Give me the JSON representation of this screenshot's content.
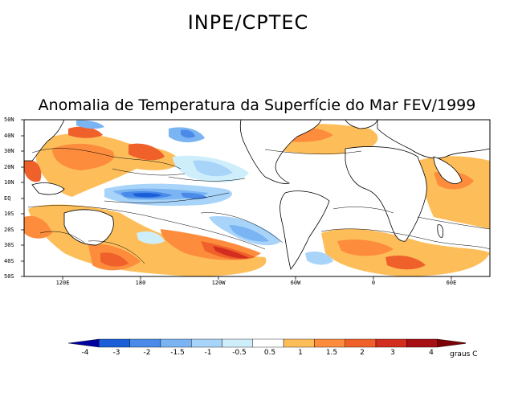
{
  "title": "INPE/CPTEC",
  "subtitle": "Anomalia de Temperatura da Superfície do Mar FEV/1999",
  "map": {
    "lat_labels": [
      "50N",
      "40N",
      "30N",
      "20N",
      "10N",
      "EQ",
      "10S",
      "20S",
      "30S",
      "40S",
      "50S"
    ],
    "lon_labels": [
      "120E",
      "180",
      "120W",
      "60W",
      "0",
      "60E"
    ]
  },
  "colorbar": {
    "labels": [
      "-4",
      "-3",
      "-2",
      "-1.5",
      "-1",
      "-0.5",
      "0.5",
      "1",
      "1.5",
      "2",
      "3",
      "4"
    ],
    "colors": [
      "#0000a0",
      "#1a5fd8",
      "#4a8ae8",
      "#7ab4f2",
      "#a8d4fa",
      "#cfeefc",
      "#ffffff",
      "#fdbe5a",
      "#fd8c3c",
      "#f0602a",
      "#d22d1e",
      "#a80f14",
      "#7a0006"
    ],
    "units": "graus C"
  }
}
